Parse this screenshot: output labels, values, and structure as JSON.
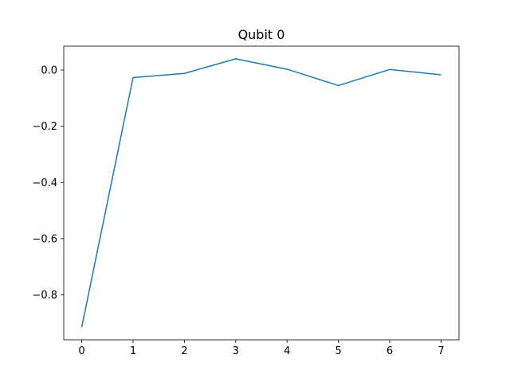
{
  "chart_data": {
    "type": "line",
    "title": "Qubit 0",
    "xlabel": "",
    "ylabel": "",
    "x": [
      0,
      1,
      2,
      3,
      4,
      5,
      6,
      7
    ],
    "series": [
      {
        "values": [
          -0.915,
          -0.027,
          -0.012,
          0.04,
          0.003,
          -0.055,
          0.002,
          -0.017
        ],
        "color": "#1f77b4"
      }
    ],
    "xlim": [
      -0.35,
      7.35
    ],
    "ylim": [
      -0.96,
      0.085
    ],
    "xticks": [
      0,
      1,
      2,
      3,
      4,
      5,
      6,
      7
    ],
    "xtick_labels": [
      "0",
      "1",
      "2",
      "3",
      "4",
      "5",
      "6",
      "7"
    ],
    "yticks": [
      0.0,
      -0.2,
      -0.4,
      -0.6,
      -0.8
    ],
    "ytick_labels": [
      "0.0",
      "−0.2",
      "−0.4",
      "−0.6",
      "−0.8"
    ],
    "grid": false,
    "legend": "none"
  }
}
